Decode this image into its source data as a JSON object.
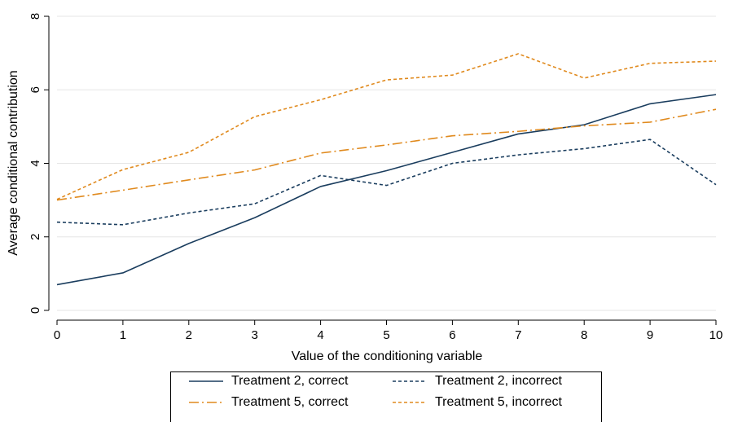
{
  "chart_data": {
    "type": "line",
    "title": "",
    "xlabel": "Value of the conditioning variable",
    "ylabel": "Average conditional contribution",
    "xlim": [
      0,
      10
    ],
    "ylim": [
      0,
      8
    ],
    "x": [
      0,
      1,
      2,
      3,
      4,
      5,
      6,
      7,
      8,
      9,
      10
    ],
    "xticks": [
      "0",
      "1",
      "2",
      "3",
      "4",
      "5",
      "6",
      "7",
      "8",
      "9",
      "10"
    ],
    "yticks": [
      "0",
      "2",
      "4",
      "6",
      "8"
    ],
    "grid": "horizontal",
    "legend_position": "bottom",
    "series": [
      {
        "name": "Treatment 2, correct",
        "color": "#1a3d5e",
        "dash": "solid",
        "values": [
          0.7,
          1.02,
          1.82,
          2.52,
          3.37,
          3.8,
          4.3,
          4.8,
          5.05,
          5.62,
          5.87
        ]
      },
      {
        "name": "Treatment 2, incorrect",
        "color": "#1a3d5e",
        "dash": "shortdash",
        "values": [
          2.4,
          2.33,
          2.65,
          2.9,
          3.67,
          3.4,
          4.0,
          4.23,
          4.4,
          4.65,
          3.42
        ]
      },
      {
        "name": "Treatment 5, correct",
        "color": "#e08a1e",
        "dash": "dashdot",
        "values": [
          3.0,
          3.27,
          3.55,
          3.82,
          4.28,
          4.5,
          4.75,
          4.87,
          5.02,
          5.12,
          5.47
        ]
      },
      {
        "name": "Treatment 5, incorrect",
        "color": "#e08a1e",
        "dash": "shortdash",
        "values": [
          3.02,
          3.83,
          4.3,
          5.27,
          5.73,
          6.27,
          6.4,
          6.98,
          6.32,
          6.72,
          6.78
        ]
      }
    ]
  }
}
